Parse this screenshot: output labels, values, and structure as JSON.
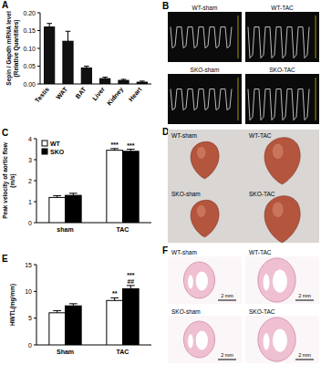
{
  "chart_data": [
    {
      "panel": "A",
      "type": "bar",
      "ylabel": [
        "Sepin / Gapdh mRNA level",
        "(Relative Quantities)"
      ],
      "categories": [
        "Testis",
        "WAT",
        "BAT",
        "Liver",
        "Kidney",
        "Heart"
      ],
      "values": [
        0.16,
        0.12,
        0.045,
        0.015,
        0.01,
        0.005
      ],
      "errors": [
        0.01,
        0.028,
        0.005,
        0.004,
        0.003,
        0.003
      ],
      "color": "#111111",
      "ylim": [
        0,
        0.2
      ],
      "yticks": [
        {
          "value": 0,
          "label": "0.00"
        },
        {
          "value": 0.05,
          "label": "0.05"
        },
        {
          "value": 0.1,
          "label": "0.10"
        },
        {
          "value": 0.15,
          "label": "0.15"
        },
        {
          "value": 0.2,
          "label": "0.20"
        }
      ]
    },
    {
      "panel": "C",
      "type": "bar",
      "ylabel": [
        "Peak velocity of aortic flow",
        "(m/s)"
      ],
      "categories": [
        "sham",
        "TAC"
      ],
      "series": [
        {
          "name": "WT",
          "color": "#ffffff",
          "values": [
            1.2,
            3.45
          ],
          "errors": [
            0.08,
            0.08
          ]
        },
        {
          "name": "SKO",
          "color": "#000000",
          "values": [
            1.3,
            3.4
          ],
          "errors": [
            0.1,
            0.1
          ]
        }
      ],
      "ylim": [
        0,
        4
      ],
      "yticks": [
        0,
        1,
        2,
        3,
        4
      ],
      "legend": "upper left",
      "annotations": [
        {
          "series": 0,
          "category": 1,
          "text": "***"
        },
        {
          "series": 1,
          "category": 1,
          "text": "***"
        }
      ]
    },
    {
      "panel": "E",
      "type": "bar",
      "ylabel": [
        "HWTL(mg/mm)"
      ],
      "categories": [
        "Sham",
        "TAC"
      ],
      "series": [
        {
          "name": "WT",
          "color": "#ffffff",
          "values": [
            6.0,
            8.3
          ],
          "errors": [
            0.4,
            0.5
          ]
        },
        {
          "name": "SKO",
          "color": "#000000",
          "values": [
            7.3,
            10.5
          ],
          "errors": [
            0.4,
            0.6
          ]
        }
      ],
      "ylim": [
        0,
        15
      ],
      "yticks": [
        0,
        5,
        10,
        15
      ],
      "annotations": [
        {
          "series": 0,
          "category": 1,
          "text": "**"
        },
        {
          "series": 1,
          "category": 1,
          "text": "##"
        },
        {
          "series": 1,
          "category": 1,
          "text": "***"
        }
      ]
    }
  ],
  "image_panels": [
    {
      "panel": "B",
      "labels": [
        "WT-sham",
        "WT-TAC",
        "SKO-sham",
        "SKO-TAC"
      ]
    },
    {
      "panel": "D",
      "labels": [
        "WT-sham",
        "WT-TAC",
        "SKO-sham",
        "SKO-TAC"
      ]
    },
    {
      "panel": "F",
      "labels": [
        "WT-sham",
        "WT-TAC",
        "SKO-sham",
        "SKO-TAC"
      ],
      "scale_bar": "2 mm"
    }
  ]
}
